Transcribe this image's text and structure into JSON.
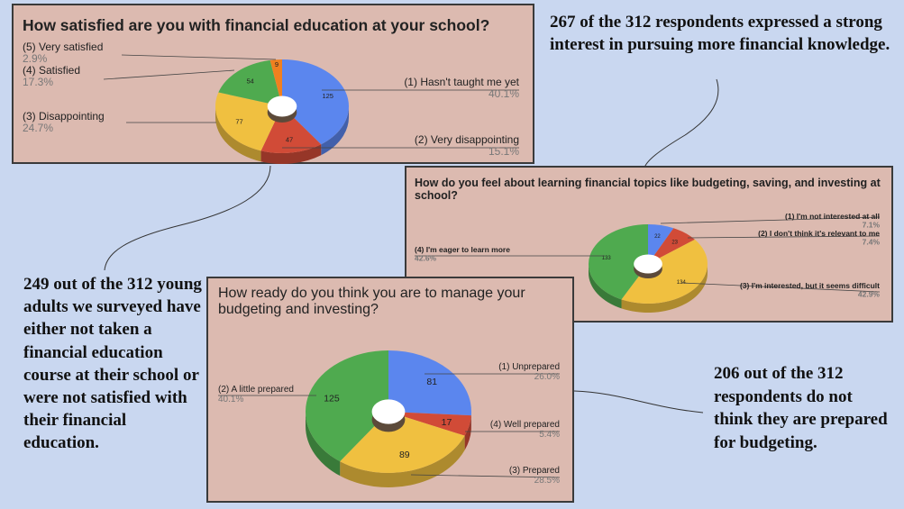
{
  "notes": {
    "interest": "267 of the 312 respondents expressed a strong interest in pursuing more financial knowledge.",
    "education": "249 out of the 312 young adults we surveyed have either not taken a financial education course at their school or were not satisfied with their financial education.",
    "budgeting": "206 out of the 312 respondents do not think they are prepared for budgeting."
  },
  "chart_data": [
    {
      "type": "pie",
      "title": "How satisfied are you with financial education at your school?",
      "categories": [
        "(1) Hasn't taught me yet",
        "(2) Very disappointing",
        "(3) Disappointing",
        "(4) Satisfied",
        "(5) Very satisfied"
      ],
      "values": [
        125,
        47,
        77,
        54,
        9
      ],
      "percents": [
        "40.1%",
        "15.1%",
        "24.7%",
        "17.3%",
        "2.9%"
      ],
      "colors": [
        "#5b86ee",
        "#d14b37",
        "#f0c040",
        "#4faa4f",
        "#f0801f"
      ]
    },
    {
      "type": "pie",
      "title": "How do you feel about learning financial topics like budgeting, saving, and investing at school?",
      "categories": [
        "(1) I'm not interested at all",
        "(2) I don't think it's relevant to me",
        "(3) I'm interested, but it seems difficult",
        "(4) I'm eager to learn more"
      ],
      "values": [
        22,
        23,
        134,
        133
      ],
      "percents": [
        "7.1%",
        "7.4%",
        "42.9%",
        "42.6%"
      ],
      "colors": [
        "#5b86ee",
        "#d14b37",
        "#f0c040",
        "#4faa4f"
      ]
    },
    {
      "type": "pie",
      "title": "How ready do you think you are to manage your budgeting and investing?",
      "categories": [
        "(1) Unprepared",
        "(4) Well prepared",
        "(3) Prepared",
        "(2) A little prepared"
      ],
      "values": [
        81,
        17,
        89,
        125
      ],
      "percents": [
        "26.0%",
        "5.4%",
        "28.5%",
        "40.1%"
      ],
      "colors": [
        "#5b86ee",
        "#d14b37",
        "#f0c040",
        "#4faa4f"
      ]
    }
  ]
}
